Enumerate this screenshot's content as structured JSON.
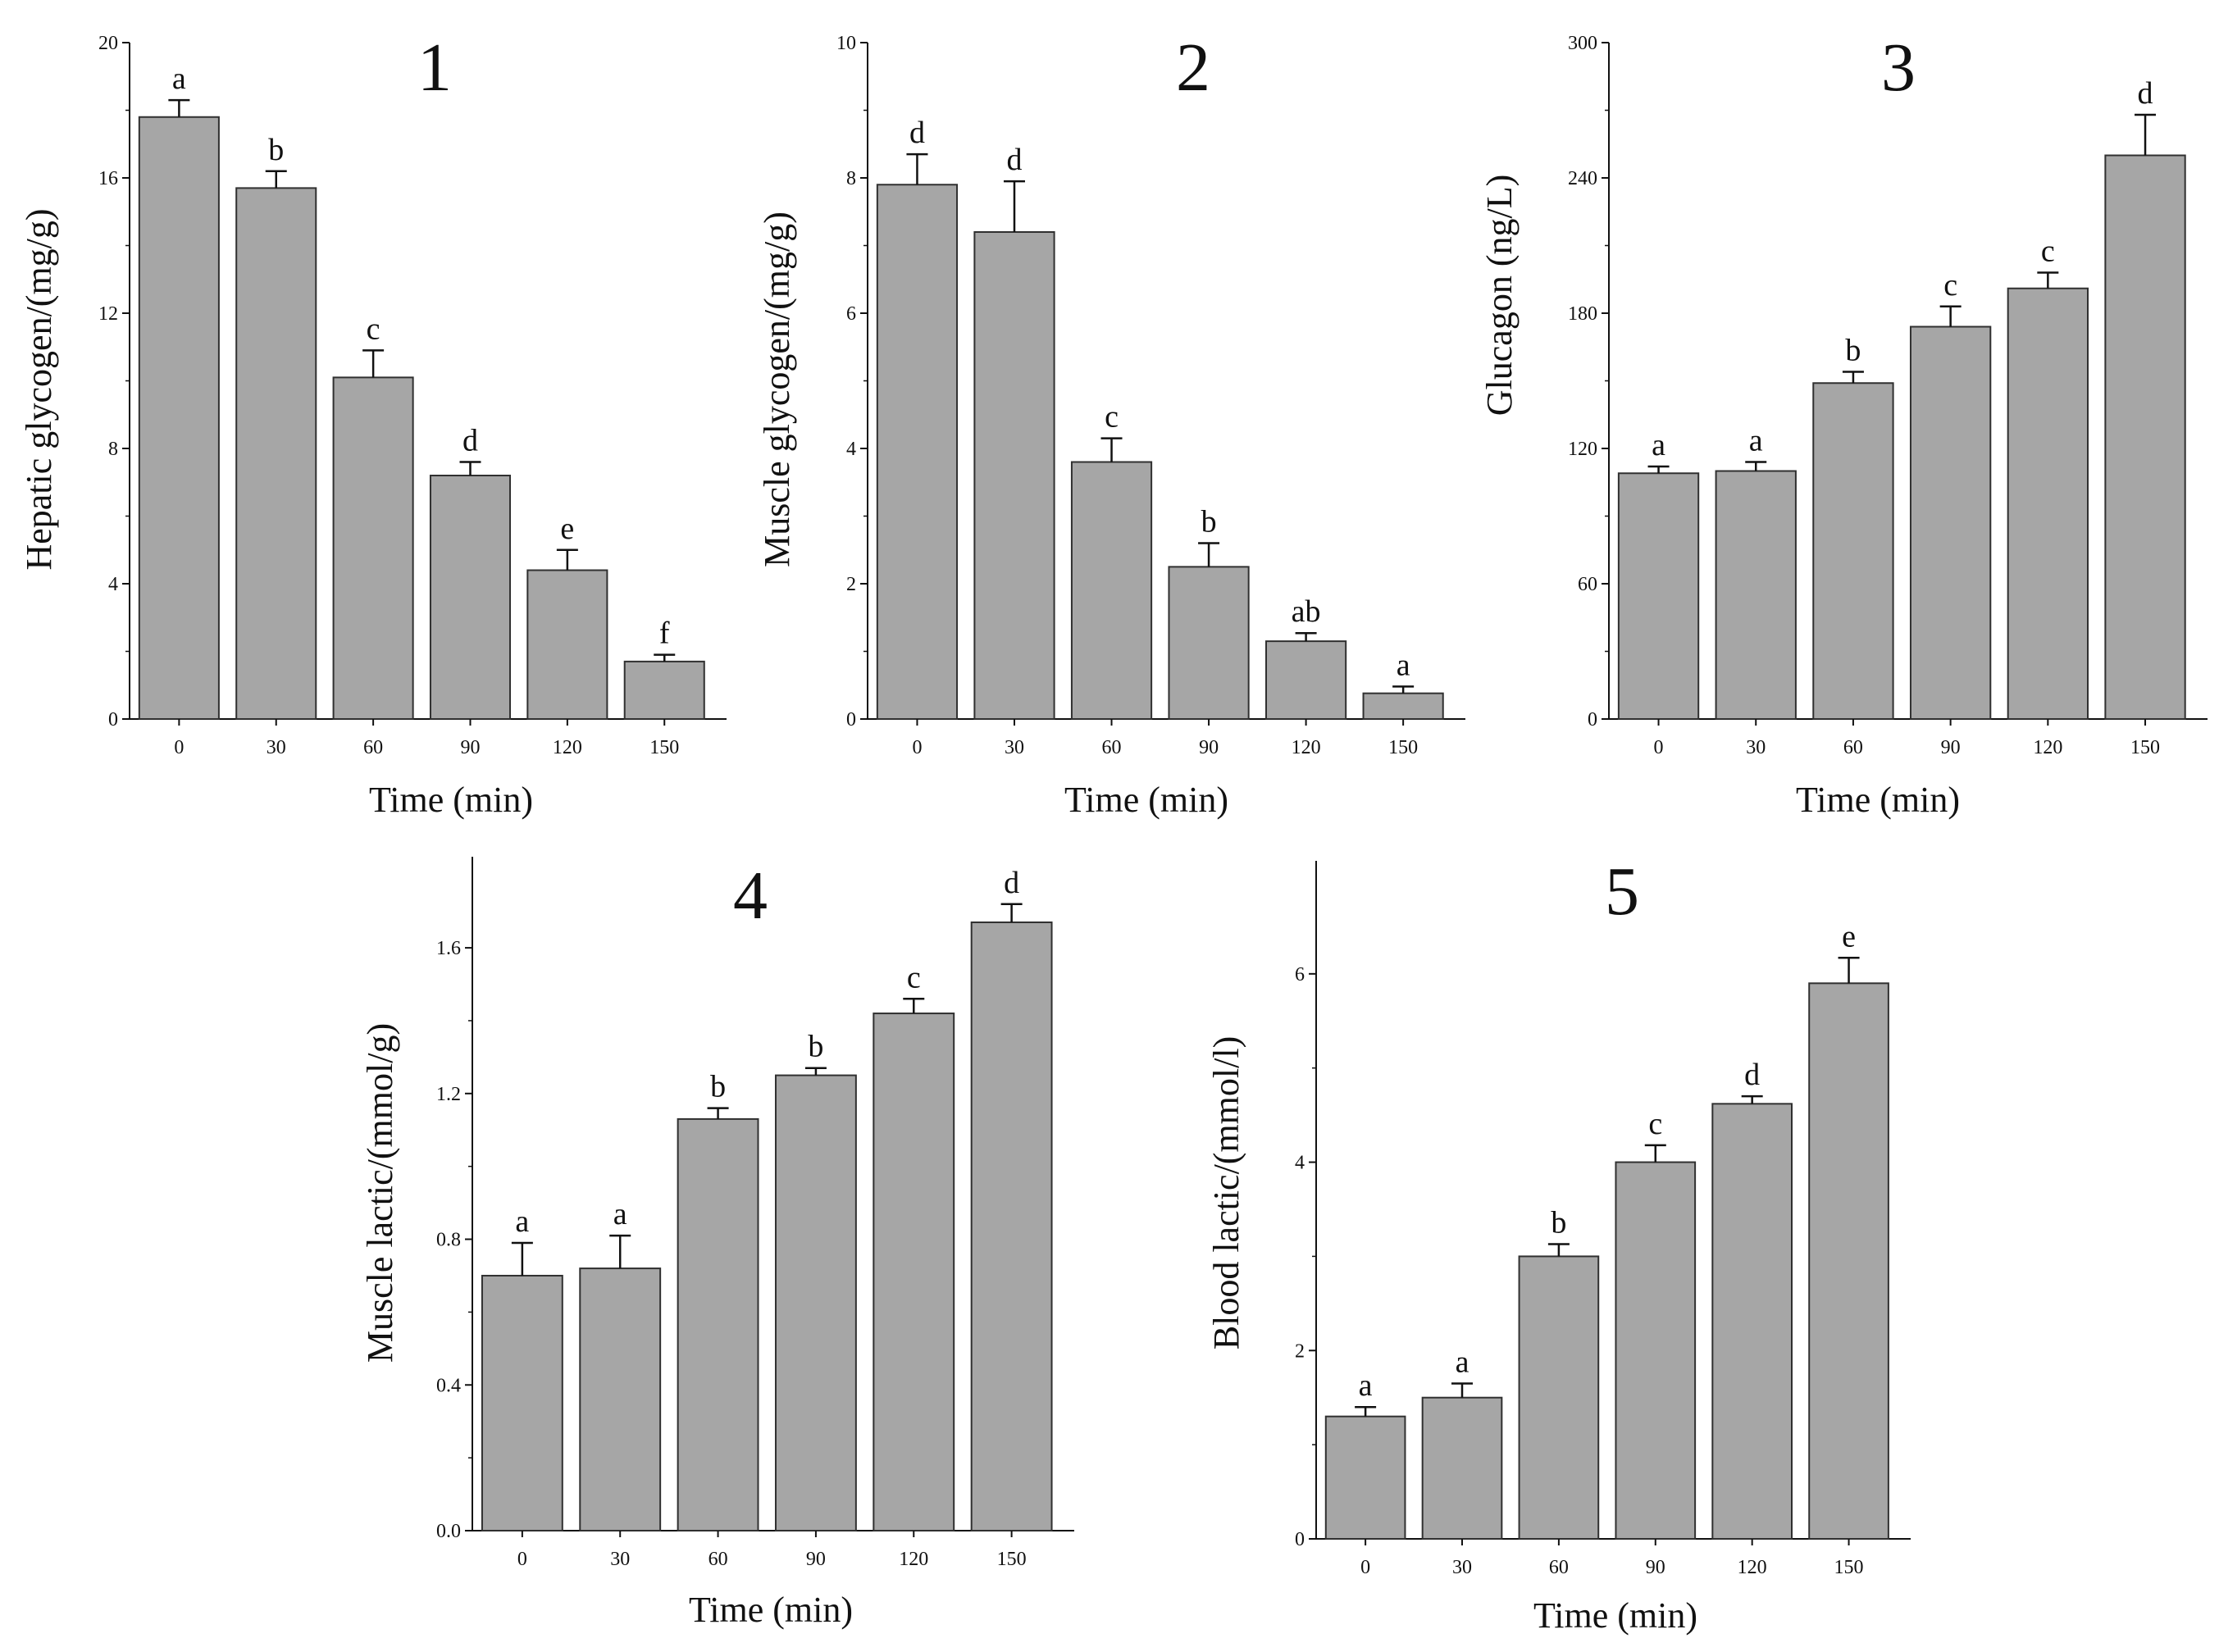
{
  "colors": {
    "bar_fill": "#a6a6a6",
    "bar_stroke": "#303030",
    "axis": "#111111"
  },
  "chart_data": [
    {
      "panel": "1",
      "type": "bar",
      "xlabel": "Time (min)",
      "ylabel": "Hepatic glycogen/(mg/g)",
      "categories": [
        "0",
        "30",
        "60",
        "90",
        "120",
        "150"
      ],
      "values": [
        17.8,
        15.7,
        10.1,
        7.2,
        4.4,
        1.7
      ],
      "errors": [
        0.5,
        0.5,
        0.8,
        0.4,
        0.6,
        0.2
      ],
      "significance": [
        "a",
        "b",
        "c",
        "d",
        "e",
        "f"
      ],
      "ylim": [
        0,
        20
      ],
      "yticks": [
        "0",
        "4",
        "8",
        "12",
        "16",
        "20"
      ]
    },
    {
      "panel": "2",
      "type": "bar",
      "xlabel": "Time (min)",
      "ylabel": "Muscle glycogen/(mg/g)",
      "categories": [
        "0",
        "30",
        "60",
        "90",
        "120",
        "150"
      ],
      "values": [
        7.9,
        7.2,
        3.8,
        2.25,
        1.15,
        0.38
      ],
      "errors": [
        0.45,
        0.75,
        0.35,
        0.35,
        0.12,
        0.1
      ],
      "significance": [
        "d",
        "d",
        "c",
        "b",
        "ab",
        "a"
      ],
      "ylim": [
        0,
        10
      ],
      "yticks": [
        "0",
        "2",
        "4",
        "6",
        "8",
        "10"
      ]
    },
    {
      "panel": "3",
      "type": "bar",
      "xlabel": "Time (min)",
      "ylabel": "Glucagon (ng/L)",
      "categories": [
        "0",
        "30",
        "60",
        "90",
        "120",
        "150"
      ],
      "values": [
        109,
        110,
        149,
        174,
        191,
        250
      ],
      "errors": [
        3,
        4,
        5,
        9,
        7,
        18
      ],
      "significance": [
        "a",
        "a",
        "b",
        "c",
        "c",
        "d"
      ],
      "ylim": [
        0,
        300
      ],
      "yticks": [
        "0",
        "60",
        "120",
        "180",
        "240",
        "300"
      ]
    },
    {
      "panel": "4",
      "type": "bar",
      "xlabel": "Time (min)",
      "ylabel": "Muscle lactic/(mmol/g)",
      "categories": [
        "0",
        "30",
        "60",
        "90",
        "120",
        "150"
      ],
      "values": [
        0.7,
        0.72,
        1.13,
        1.25,
        1.42,
        1.67
      ],
      "errors": [
        0.09,
        0.09,
        0.03,
        0.02,
        0.04,
        0.05
      ],
      "significance": [
        "a",
        "a",
        "b",
        "b",
        "c",
        "d"
      ],
      "ylim": [
        0,
        1.85
      ],
      "yticks": [
        "0.0",
        "0.4",
        "0.8",
        "1.2",
        "1.6"
      ]
    },
    {
      "panel": "5",
      "type": "bar",
      "xlabel": "Time (min)",
      "ylabel": "Blood lactic/(mmol/l)",
      "categories": [
        "0",
        "30",
        "60",
        "90",
        "120",
        "150"
      ],
      "values": [
        1.3,
        1.5,
        3.0,
        4.0,
        4.62,
        5.9
      ],
      "errors": [
        0.1,
        0.15,
        0.13,
        0.18,
        0.08,
        0.27
      ],
      "significance": [
        "a",
        "a",
        "b",
        "c",
        "d",
        "e"
      ],
      "ylim": [
        0,
        7.2
      ],
      "yticks": [
        "0",
        "2",
        "4",
        "6"
      ]
    }
  ]
}
